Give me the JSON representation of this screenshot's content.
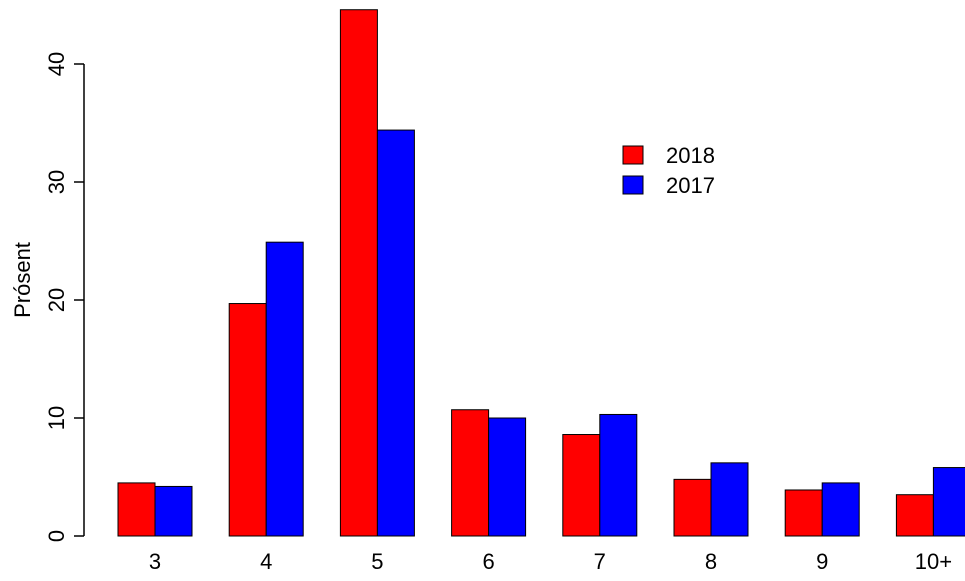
{
  "chart_data": {
    "type": "bar",
    "categories": [
      "3",
      "4",
      "5",
      "6",
      "7",
      "8",
      "9",
      "10+"
    ],
    "series": [
      {
        "name": "2018",
        "color": "#ff0000",
        "values": [
          4.5,
          19.7,
          44.6,
          10.7,
          8.6,
          4.8,
          3.9,
          3.5
        ]
      },
      {
        "name": "2017",
        "color": "#0000ff",
        "values": [
          4.2,
          24.9,
          34.4,
          10.0,
          10.3,
          6.2,
          4.5,
          5.8
        ]
      }
    ],
    "title": "",
    "xlabel": "",
    "ylabel": "Prósent",
    "ylim": [
      0,
      45
    ],
    "yticks": [
      0,
      10,
      20,
      30,
      40
    ],
    "grid": false,
    "legend_position": "top-right"
  }
}
